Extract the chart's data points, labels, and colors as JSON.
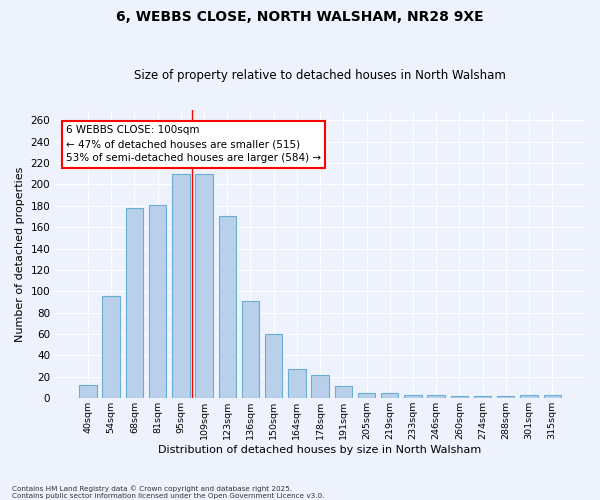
{
  "title1": "6, WEBBS CLOSE, NORTH WALSHAM, NR28 9XE",
  "title2": "Size of property relative to detached houses in North Walsham",
  "xlabel": "Distribution of detached houses by size in North Walsham",
  "ylabel": "Number of detached properties",
  "categories": [
    "40sqm",
    "54sqm",
    "68sqm",
    "81sqm",
    "95sqm",
    "109sqm",
    "123sqm",
    "136sqm",
    "150sqm",
    "164sqm",
    "178sqm",
    "191sqm",
    "205sqm",
    "219sqm",
    "233sqm",
    "246sqm",
    "260sqm",
    "274sqm",
    "288sqm",
    "301sqm",
    "315sqm"
  ],
  "bar_heights": [
    12,
    96,
    178,
    181,
    210,
    210,
    170,
    91,
    60,
    27,
    22,
    11,
    5,
    5,
    3,
    3,
    2,
    2,
    2,
    3,
    3
  ],
  "bar_color": "#b8d0ea",
  "bar_edge_color": "#6aaed6",
  "red_line_index": 4.5,
  "annotation_text": "6 WEBBS CLOSE: 100sqm\n← 47% of detached houses are smaller (515)\n53% of semi-detached houses are larger (584) →",
  "annotation_box_color": "white",
  "annotation_box_edge_color": "red",
  "ylim": [
    0,
    270
  ],
  "ytick_interval": 20,
  "footnote": "Contains HM Land Registry data © Crown copyright and database right 2025.\nContains public sector information licensed under the Open Government Licence v3.0.",
  "bg_color": "#eef2fc"
}
